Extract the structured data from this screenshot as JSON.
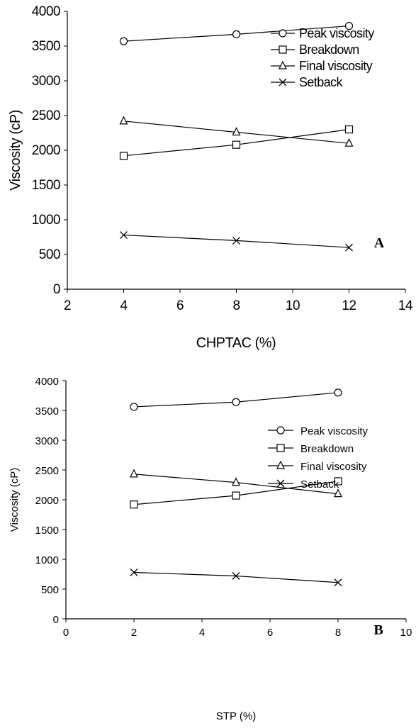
{
  "chart_data": [
    {
      "type": "line",
      "panel_label": "A",
      "xlabel": "CHPTAC (%)",
      "ylabel": "Viscosity (cP)",
      "xlim": [
        2,
        14
      ],
      "ylim": [
        0,
        4000
      ],
      "xticks": [
        2,
        4,
        6,
        8,
        10,
        12,
        14
      ],
      "yticks": [
        0,
        500,
        1000,
        1500,
        2000,
        2500,
        3000,
        3500,
        4000
      ],
      "x": [
        4,
        8,
        12
      ],
      "grid": false,
      "legend_position": "top-right",
      "series": [
        {
          "name": "Peak viscosity",
          "marker": "circle",
          "values": [
            3570,
            3670,
            3790
          ]
        },
        {
          "name": "Breakdown",
          "marker": "square",
          "values": [
            1920,
            2080,
            2300
          ]
        },
        {
          "name": "Final viscosity",
          "marker": "triangle",
          "values": [
            2420,
            2260,
            2100
          ]
        },
        {
          "name": "Setback",
          "marker": "x",
          "values": [
            780,
            700,
            600
          ]
        }
      ]
    },
    {
      "type": "line",
      "panel_label": "B",
      "xlabel": "STP (%)",
      "ylabel": "Viscosity (cP)",
      "xlim": [
        0,
        10
      ],
      "ylim": [
        0,
        4000
      ],
      "xticks": [
        0,
        2,
        4,
        6,
        8,
        10
      ],
      "yticks": [
        0,
        500,
        1000,
        1500,
        2000,
        2500,
        3000,
        3500,
        4000
      ],
      "x": [
        2,
        5,
        8
      ],
      "grid": false,
      "legend_position": "top-right",
      "series": [
        {
          "name": "Peak viscosity",
          "marker": "circle",
          "values": [
            3560,
            3640,
            3800
          ]
        },
        {
          "name": "Breakdown",
          "marker": "square",
          "values": [
            1920,
            2070,
            2310
          ]
        },
        {
          "name": "Final viscosity",
          "marker": "triangle",
          "values": [
            2430,
            2290,
            2100
          ]
        },
        {
          "name": "Setback",
          "marker": "x",
          "values": [
            780,
            720,
            610
          ]
        }
      ]
    }
  ]
}
